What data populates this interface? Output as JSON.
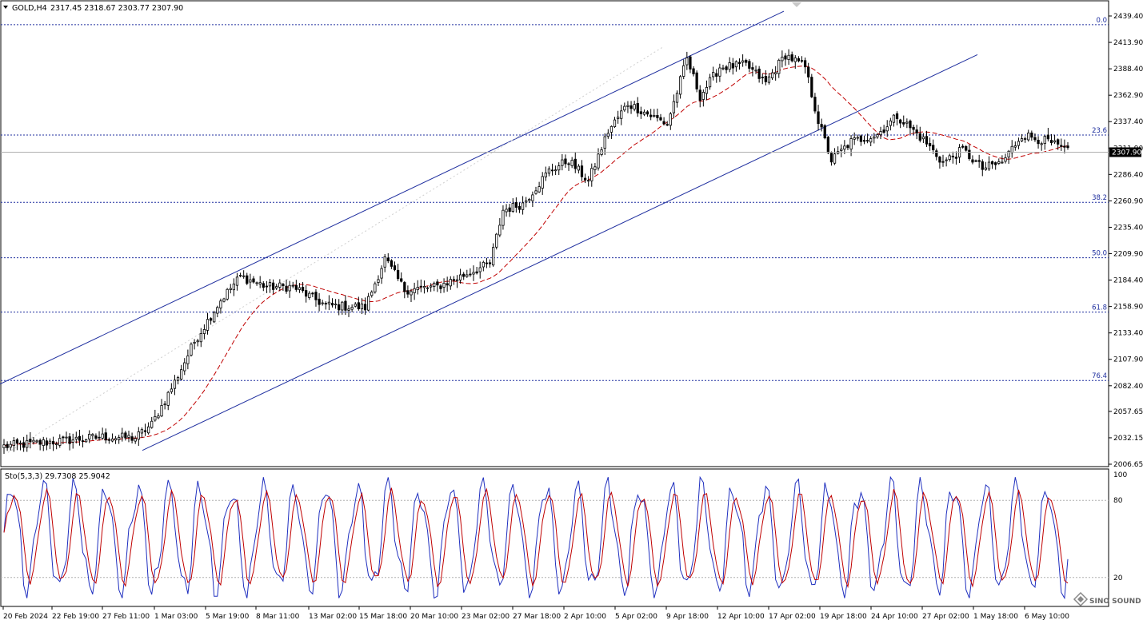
{
  "header": {
    "symbol": "GOLD,H4",
    "ohlc": "2317.45 2318.67 2303.77 2307.90"
  },
  "osc_header": "Sto(5,3,3) 29.7308 25.9042",
  "watermark": "SINO SOUND",
  "colors": {
    "line": "#000000",
    "grid": "#a9a9a9",
    "channel": "#1f2f9f",
    "ma": "#c00000",
    "stoch_main": "#1f2fbf",
    "stoch_signal": "#c00000",
    "price_line": "#b0b0b0"
  },
  "chart_data": [
    {
      "type": "candlestick",
      "title": "GOLD,H4",
      "ylim": [
        2006.65,
        2439.4
      ],
      "y_ticks": [
        "2439.40",
        "2413.90",
        "2388.40",
        "2362.90",
        "2337.40",
        "2311.90",
        "2286.40",
        "2260.90",
        "2235.40",
        "2209.90",
        "2184.40",
        "2158.90",
        "2133.40",
        "2107.90",
        "2082.40",
        "2057.65",
        "2032.15",
        "2006.65"
      ],
      "x_ticks": [
        "20 Feb 2024",
        "22 Feb 19:00",
        "27 Feb 11:00",
        "1 Mar 03:00",
        "5 Mar 19:00",
        "8 Mar 11:00",
        "13 Mar 02:00",
        "15 Mar 18:00",
        "20 Mar 10:00",
        "23 Mar 02:00",
        "27 Mar 18:00",
        "2 Apr 10:00",
        "5 Apr 02:00",
        "9 Apr 18:00",
        "12 Apr 10:00",
        "17 Apr 02:00",
        "19 Apr 18:00",
        "24 Apr 10:00",
        "27 Apr 02:00",
        "1 May 18:00",
        "6 May 10:00"
      ],
      "current_price": "2307.90",
      "fibonacci": [
        {
          "level": "0.0",
          "price": 2431.0
        },
        {
          "level": "23.6",
          "price": 2324.5
        },
        {
          "level": "38.2",
          "price": 2259.5
        },
        {
          "level": "50.0",
          "price": 2206.0
        },
        {
          "level": "61.8",
          "price": 2153.5
        },
        {
          "level": "76.4",
          "price": 2087.5
        }
      ],
      "channel": {
        "upper": [
          [
            0,
            2084.0
          ],
          [
            980,
            2444.0
          ]
        ],
        "lower": [
          [
            178,
            2020.0
          ],
          [
            1222,
            2402.0
          ]
        ]
      },
      "anchors": [
        {
          "i": 0,
          "price": 2024
        },
        {
          "i": 20,
          "price": 2030
        },
        {
          "i": 30,
          "price": 2033
        },
        {
          "i": 40,
          "price": 2032
        },
        {
          "i": 45,
          "price": 2045
        },
        {
          "i": 52,
          "price": 2086
        },
        {
          "i": 58,
          "price": 2125
        },
        {
          "i": 66,
          "price": 2165
        },
        {
          "i": 72,
          "price": 2188
        },
        {
          "i": 80,
          "price": 2178
        },
        {
          "i": 88,
          "price": 2178
        },
        {
          "i": 98,
          "price": 2160
        },
        {
          "i": 110,
          "price": 2158
        },
        {
          "i": 116,
          "price": 2205
        },
        {
          "i": 122,
          "price": 2175
        },
        {
          "i": 132,
          "price": 2178
        },
        {
          "i": 142,
          "price": 2192
        },
        {
          "i": 148,
          "price": 2200
        },
        {
          "i": 152,
          "price": 2252
        },
        {
          "i": 158,
          "price": 2258
        },
        {
          "i": 166,
          "price": 2290
        },
        {
          "i": 172,
          "price": 2300
        },
        {
          "i": 178,
          "price": 2280
        },
        {
          "i": 184,
          "price": 2328
        },
        {
          "i": 190,
          "price": 2355
        },
        {
          "i": 196,
          "price": 2345
        },
        {
          "i": 202,
          "price": 2335
        },
        {
          "i": 208,
          "price": 2398
        },
        {
          "i": 212,
          "price": 2362
        },
        {
          "i": 218,
          "price": 2390
        },
        {
          "i": 226,
          "price": 2392
        },
        {
          "i": 232,
          "price": 2375
        },
        {
          "i": 238,
          "price": 2402
        },
        {
          "i": 244,
          "price": 2390
        },
        {
          "i": 248,
          "price": 2338
        },
        {
          "i": 252,
          "price": 2300
        },
        {
          "i": 258,
          "price": 2318
        },
        {
          "i": 266,
          "price": 2325
        },
        {
          "i": 272,
          "price": 2343
        },
        {
          "i": 280,
          "price": 2320
        },
        {
          "i": 286,
          "price": 2298
        },
        {
          "i": 292,
          "price": 2310
        },
        {
          "i": 298,
          "price": 2292
        },
        {
          "i": 304,
          "price": 2298
        },
        {
          "i": 310,
          "price": 2325
        },
        {
          "i": 318,
          "price": 2318
        },
        {
          "i": 324,
          "price": 2308
        }
      ],
      "candle_count": 325,
      "x_range": [
        5,
        1335
      ],
      "ma_lag": 22,
      "stochastic": {
        "ylim": [
          0,
          100
        ],
        "levels": [
          "100",
          "80",
          "20"
        ],
        "cycles": 34
      }
    }
  ]
}
